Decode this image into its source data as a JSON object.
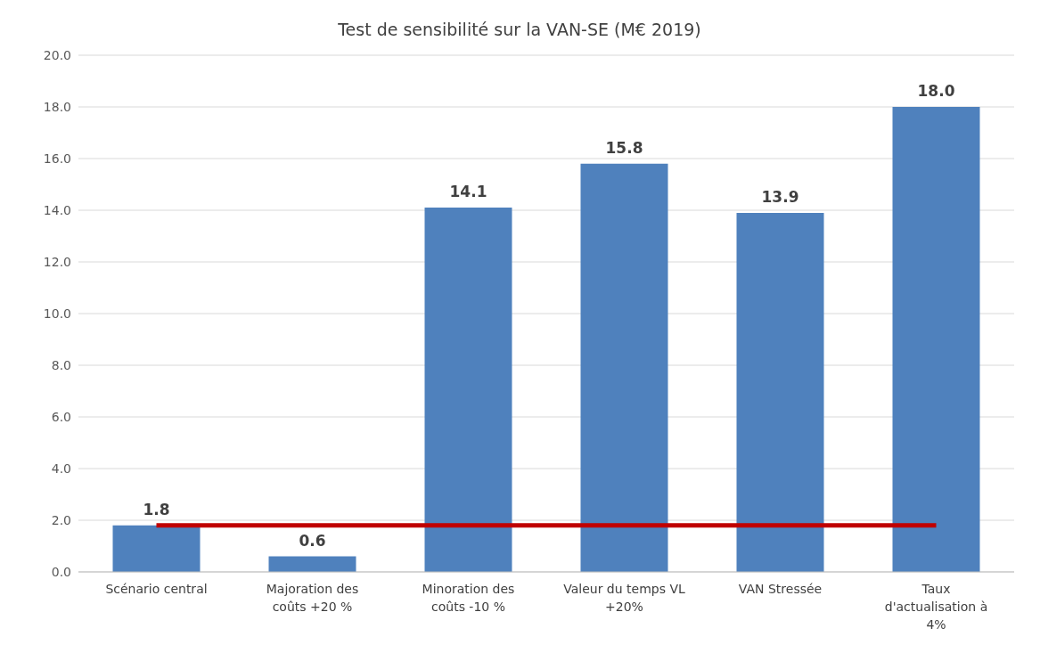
{
  "chart_data": {
    "type": "bar",
    "title": "Test de sensibilité sur la VAN-SE (M€ 2019)",
    "categories": [
      "Scénario central",
      "Majoration des coûts +20 %",
      "Minoration des coûts -10 %",
      "Valeur du temps VL +20%",
      "VAN Stressée",
      "Taux d'actualisation à 4%"
    ],
    "values": [
      1.8,
      0.6,
      14.1,
      15.8,
      13.9,
      18.0
    ],
    "value_labels": [
      "1.8",
      "0.6",
      "14.1",
      "15.8",
      "13.9",
      "18.0"
    ],
    "color": "#4f81bd",
    "ylim": [
      0,
      20
    ],
    "yticks": [
      {
        "value": 0,
        "label": "0.0"
      },
      {
        "value": 2,
        "label": "2.0"
      },
      {
        "value": 4,
        "label": "4.0"
      },
      {
        "value": 6,
        "label": "6.0"
      },
      {
        "value": 8,
        "label": "8.0"
      },
      {
        "value": 10,
        "label": "10.0"
      },
      {
        "value": 12,
        "label": "12.0"
      },
      {
        "value": 14,
        "label": "14.0"
      },
      {
        "value": 16,
        "label": "16.0"
      },
      {
        "value": 18,
        "label": "18.0"
      },
      {
        "value": 20,
        "label": "20.0"
      }
    ],
    "grid": "y",
    "ref_lines": [
      {
        "axis": "y",
        "value": 1.8,
        "color": "#c00000"
      }
    ]
  }
}
